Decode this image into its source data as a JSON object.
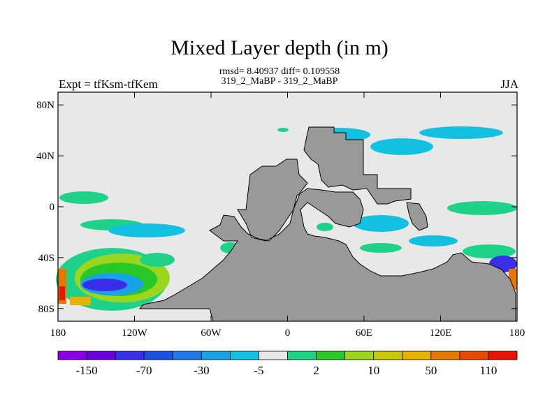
{
  "chart_data": {
    "type": "heatmap",
    "title": "Mixed Layer depth (in m)",
    "subtitle_line1": "rmsd= 8.40937 diff= 0.109558",
    "subtitle_line2": "319_2_MaBP - 319_2_MaBP",
    "left_label": "Expt = tfKsm-tfKem",
    "right_label": "JJA",
    "xlim": [
      -180,
      180
    ],
    "ylim": [
      -90,
      90
    ],
    "x_ticks": [
      {
        "value": -180,
        "label": "180"
      },
      {
        "value": -120,
        "label": "120W"
      },
      {
        "value": -60,
        "label": "60W"
      },
      {
        "value": 0,
        "label": "0"
      },
      {
        "value": 60,
        "label": "60E"
      },
      {
        "value": 120,
        "label": "120E"
      },
      {
        "value": 180,
        "label": "180"
      }
    ],
    "y_ticks": [
      {
        "value": 80,
        "label": "80N"
      },
      {
        "value": 40,
        "label": "40N"
      },
      {
        "value": 0,
        "label": "0"
      },
      {
        "value": -40,
        "label": "40S"
      },
      {
        "value": -80,
        "label": "80S"
      }
    ],
    "colorbar": {
      "colors": [
        "#8a00e6",
        "#6a00e0",
        "#3a2ee8",
        "#1e50e6",
        "#1e78e8",
        "#18a2e8",
        "#14c0e0",
        "#e8e8e8",
        "#1ed28a",
        "#28c828",
        "#9ad61e",
        "#c8c80a",
        "#e6b400",
        "#e67800",
        "#e64a00",
        "#e61400"
      ],
      "labels": [
        {
          "after_box": 1,
          "text": "-150"
        },
        {
          "after_box": 3,
          "text": "-70"
        },
        {
          "after_box": 5,
          "text": "-30"
        },
        {
          "after_box": 7,
          "text": "-5"
        },
        {
          "after_box": 9,
          "text": "2"
        },
        {
          "after_box": 11,
          "text": "10"
        },
        {
          "after_box": 13,
          "text": "50"
        },
        {
          "after_box": 15,
          "text": "110"
        }
      ]
    },
    "background_color": "#e8e8e8",
    "land_color": "#999999"
  }
}
